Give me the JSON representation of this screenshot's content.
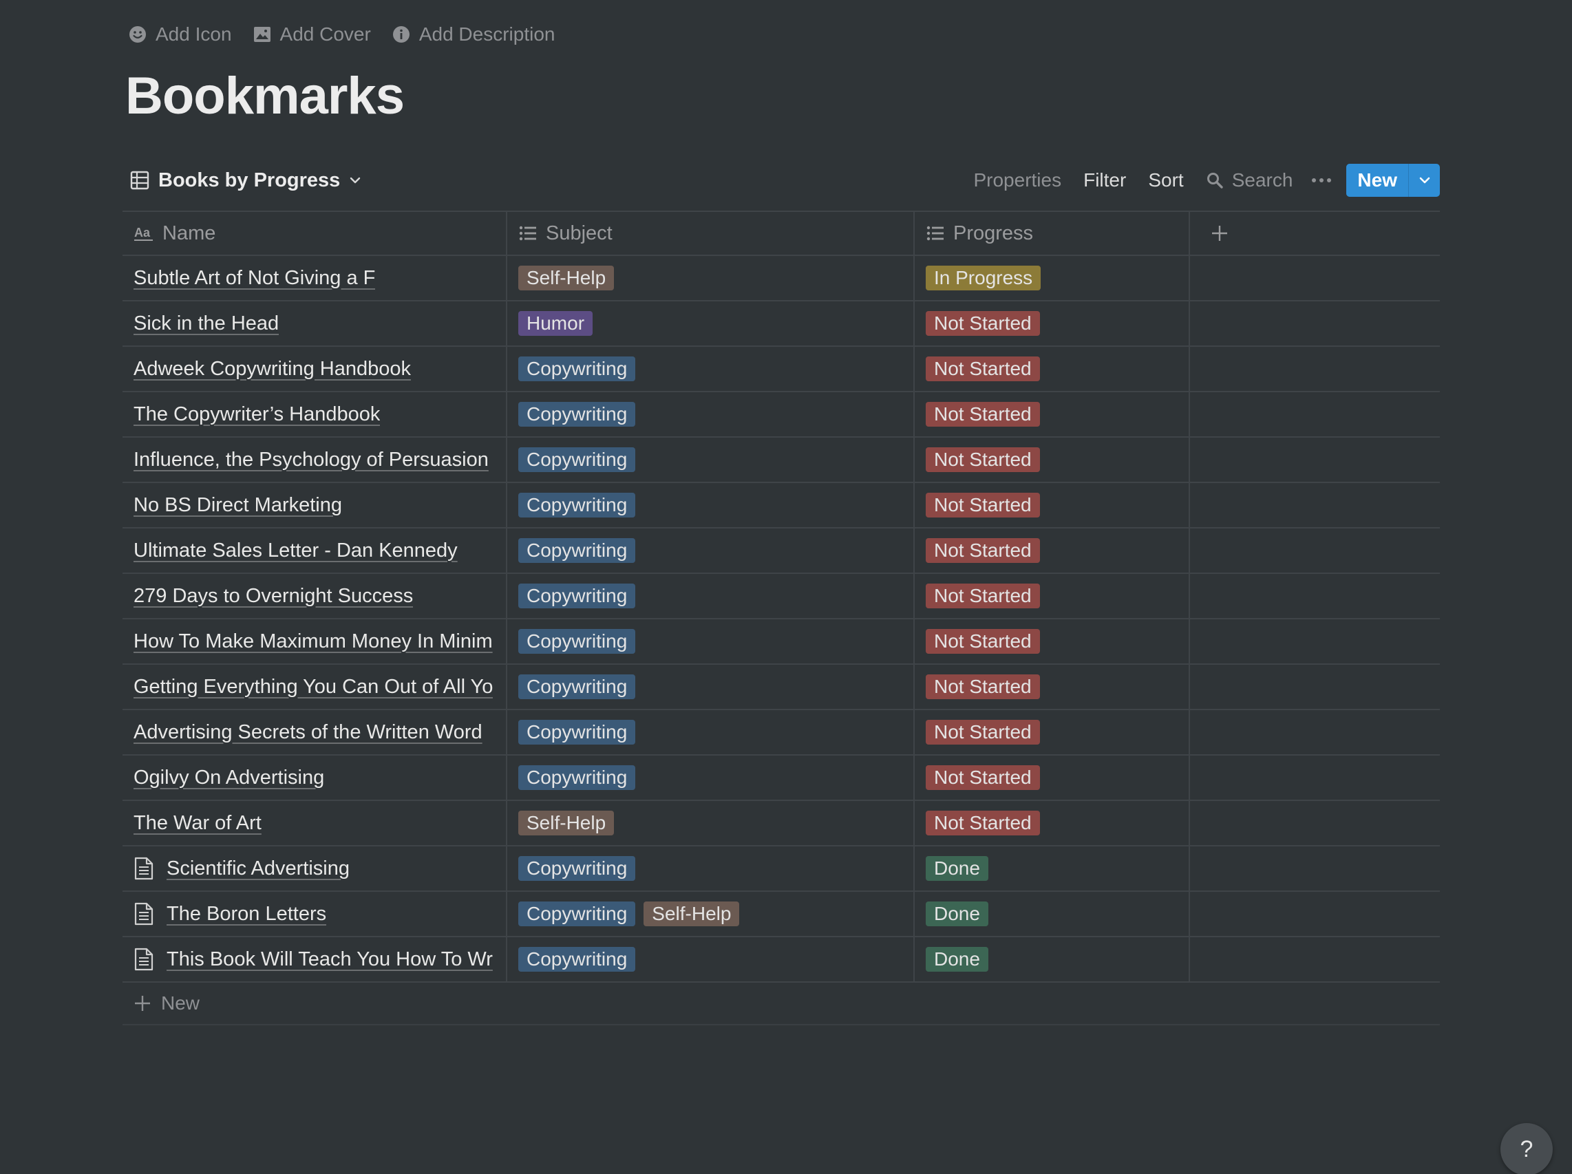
{
  "page_actions": {
    "add_icon": "Add Icon",
    "add_cover": "Add Cover",
    "add_description": "Add Description"
  },
  "title": "Bookmarks",
  "view": {
    "name": "Books by Progress",
    "properties": "Properties",
    "filter": "Filter",
    "sort": "Sort",
    "search": "Search",
    "new": "New"
  },
  "columns": {
    "name": "Name",
    "subject": "Subject",
    "progress": "Progress"
  },
  "tag_colors": {
    "Self-Help": "#6b5a52",
    "Humor": "#5c4d84",
    "Copywriting": "#3b5a78",
    "In Progress": "#8c7b38",
    "Not Started": "#8d4845",
    "Done": "#3c6654"
  },
  "rows": [
    {
      "name": "Subtle Art of Not Giving a F",
      "doc_icon": false,
      "subjects": [
        "Self-Help"
      ],
      "progress": "In Progress"
    },
    {
      "name": "Sick in the Head",
      "doc_icon": false,
      "subjects": [
        "Humor"
      ],
      "progress": "Not Started"
    },
    {
      "name": "Adweek Copywriting Handbook",
      "doc_icon": false,
      "subjects": [
        "Copywriting"
      ],
      "progress": "Not Started"
    },
    {
      "name": "The Copywriter’s Handbook",
      "doc_icon": false,
      "subjects": [
        "Copywriting"
      ],
      "progress": "Not Started"
    },
    {
      "name": "Influence, the Psychology of Persuasion",
      "doc_icon": false,
      "subjects": [
        "Copywriting"
      ],
      "progress": "Not Started"
    },
    {
      "name": "No BS Direct Marketing",
      "doc_icon": false,
      "subjects": [
        "Copywriting"
      ],
      "progress": "Not Started"
    },
    {
      "name": "Ultimate Sales Letter - Dan Kennedy",
      "doc_icon": false,
      "subjects": [
        "Copywriting"
      ],
      "progress": "Not Started"
    },
    {
      "name": "279 Days to Overnight Success",
      "doc_icon": false,
      "subjects": [
        "Copywriting"
      ],
      "progress": "Not Started"
    },
    {
      "name": "How To Make Maximum Money In Minim",
      "doc_icon": false,
      "subjects": [
        "Copywriting"
      ],
      "progress": "Not Started"
    },
    {
      "name": "Getting Everything You Can Out of All Yo",
      "doc_icon": false,
      "subjects": [
        "Copywriting"
      ],
      "progress": "Not Started"
    },
    {
      "name": "Advertising Secrets of the Written Word",
      "doc_icon": false,
      "subjects": [
        "Copywriting"
      ],
      "progress": "Not Started"
    },
    {
      "name": "Ogilvy On Advertising",
      "doc_icon": false,
      "subjects": [
        "Copywriting"
      ],
      "progress": "Not Started"
    },
    {
      "name": "The War of Art",
      "doc_icon": false,
      "subjects": [
        "Self-Help"
      ],
      "progress": "Not Started"
    },
    {
      "name": "Scientific Advertising",
      "doc_icon": true,
      "subjects": [
        "Copywriting"
      ],
      "progress": "Done"
    },
    {
      "name": "The Boron Letters",
      "doc_icon": true,
      "subjects": [
        "Copywriting",
        "Self-Help"
      ],
      "progress": "Done"
    },
    {
      "name": "This Book Will Teach You How To Wr",
      "doc_icon": true,
      "subjects": [
        "Copywriting"
      ],
      "progress": "Done"
    }
  ],
  "new_row": "New",
  "help": "?"
}
